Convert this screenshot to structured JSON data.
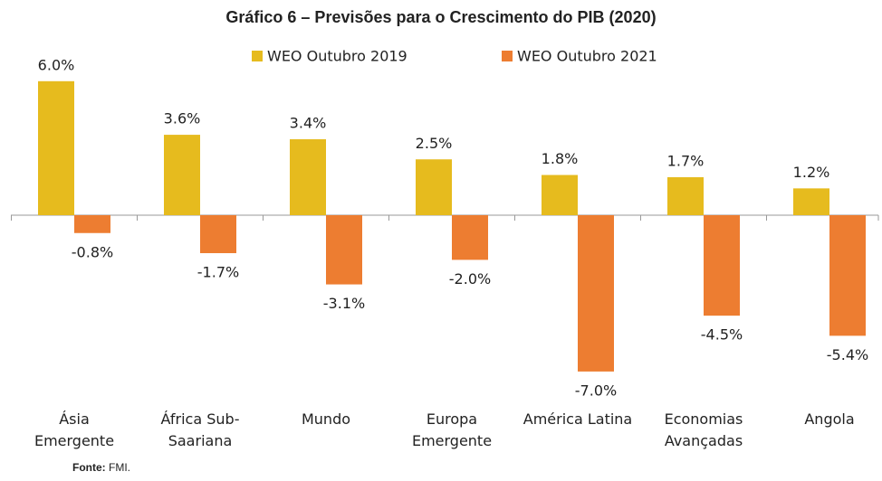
{
  "chart_data": {
    "type": "bar",
    "title": "Gráfico 6 – Previsões para o Crescimento do PIB (2020)",
    "categories": [
      "Ásia Emergente",
      "África Sub-Saariana",
      "Mundo",
      "Europa Emergente",
      "América Latina",
      "Economias Avançadas",
      "Angola"
    ],
    "series": [
      {
        "name": "WEO Outubro 2019",
        "color": "#e6bb1e",
        "values": [
          6.0,
          3.6,
          3.4,
          2.5,
          1.8,
          1.7,
          1.2
        ],
        "value_labels": [
          "6.0%",
          "3.6%",
          "3.4%",
          "2.5%",
          "1.8%",
          "1.7%",
          "1.2%"
        ]
      },
      {
        "name": "WEO Outubro 2021",
        "color": "#ed7d31",
        "values": [
          -0.8,
          -1.7,
          -3.1,
          -2.0,
          -7.0,
          -4.5,
          -5.4
        ],
        "value_labels": [
          "-0.8%",
          "-1.7%",
          "-3.1%",
          "-2.0%",
          "-7.0%",
          "-4.5%",
          "-5.4%"
        ]
      }
    ],
    "legend": "top",
    "source_label": "Fonte:",
    "source": "FMI."
  }
}
